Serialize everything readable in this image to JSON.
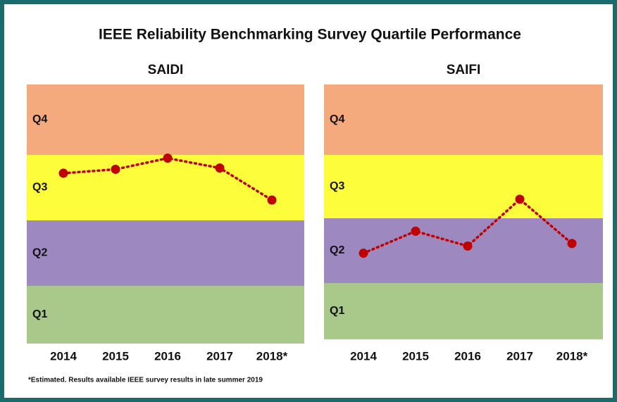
{
  "title": "IEEE Reliability Benchmarking  Survey Quartile Performance",
  "footnote": "*Estimated. Results available IEEE survey results in late summer 2019",
  "chart_data": [
    {
      "type": "line",
      "title": "SAIDI",
      "categories": [
        "2014",
        "2015",
        "2016",
        "2017",
        "2018*"
      ],
      "values": [
        2.72,
        2.78,
        2.95,
        2.8,
        2.31
      ],
      "color": "#c00000",
      "ylim": [
        0,
        4
      ],
      "yticks": [
        {
          "value": 0.5,
          "label": "Q1"
        },
        {
          "value": 1.5,
          "label": "Q2"
        },
        {
          "value": 2.5,
          "label": "Q3"
        },
        {
          "value": 3.5,
          "label": "Q4"
        }
      ],
      "band_colors": [
        "#a9c98a",
        "#9d88c0",
        "#fdfd3c",
        "#f4aa7c"
      ]
    },
    {
      "type": "line",
      "title": "SAIFI",
      "categories": [
        "2014",
        "2015",
        "2016",
        "2017",
        "2018*"
      ],
      "values": [
        1.46,
        1.8,
        1.57,
        2.3,
        1.61
      ],
      "color": "#c00000",
      "ylim": [
        0,
        4
      ],
      "yticks": [
        {
          "value": 0.5,
          "label": "Q1"
        },
        {
          "value": 1.5,
          "label": "Q2"
        },
        {
          "value": 2.5,
          "label": "Q3"
        },
        {
          "value": 3.5,
          "label": "Q4"
        }
      ],
      "band_colors": [
        "#a9c98a",
        "#9d88c0",
        "#fdfd3c",
        "#f4aa7c"
      ]
    }
  ]
}
